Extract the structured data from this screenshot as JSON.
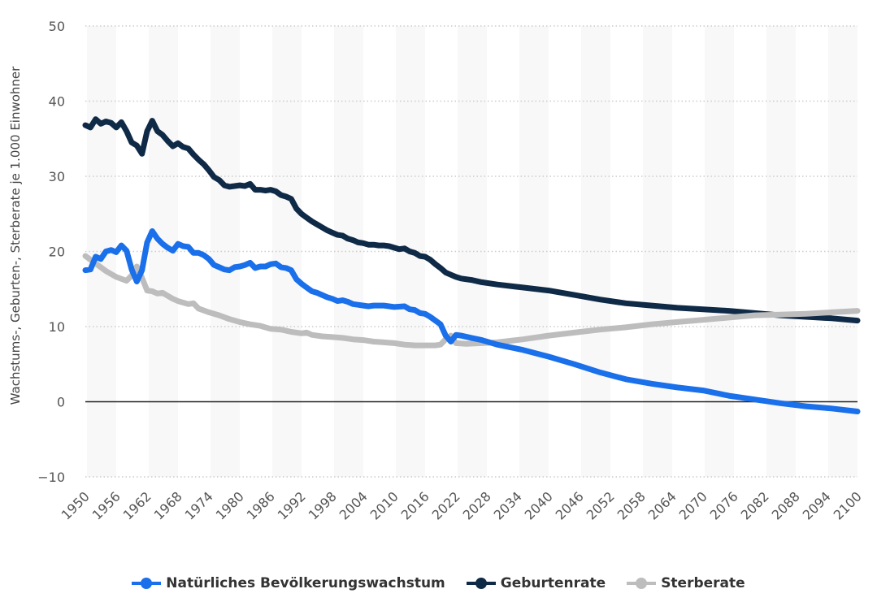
{
  "chart_data": {
    "type": "line",
    "ylabel": "Wachstums-, Geburten-, Sterberate je 1.000 Einwohner",
    "xlabel": "",
    "xlim": [
      1950,
      2100
    ],
    "ylim": [
      -10,
      50
    ],
    "yticks": [
      -10,
      0,
      10,
      20,
      30,
      40,
      50
    ],
    "ytick_labels": [
      "−10",
      "0",
      "10",
      "20",
      "30",
      "40",
      "50"
    ],
    "xticks": [
      "1950",
      "1956",
      "1962",
      "1968",
      "1974",
      "1980",
      "1986",
      "1992",
      "1998",
      "2004",
      "2010",
      "2016",
      "2022",
      "2028",
      "2034",
      "2040",
      "2046",
      "2052",
      "2058",
      "2064",
      "2070",
      "2076",
      "2082",
      "2088",
      "2094",
      "2100"
    ],
    "grid": true,
    "legend": "bottom",
    "series": [
      {
        "name": "Natürliches Bevölkerungswachstum",
        "color": "#1a6fea",
        "x": [
          1950,
          1951,
          1952,
          1953,
          1954,
          1955,
          1956,
          1957,
          1958,
          1959,
          1960,
          1961,
          1962,
          1963,
          1964,
          1965,
          1966,
          1967,
          1968,
          1969,
          1970,
          1971,
          1972,
          1973,
          1974,
          1975,
          1976,
          1977,
          1978,
          1979,
          1980,
          1981,
          1982,
          1983,
          1984,
          1985,
          1986,
          1987,
          1988,
          1989,
          1990,
          1991,
          1992,
          1993,
          1994,
          1995,
          1996,
          1997,
          1998,
          1999,
          2000,
          2001,
          2002,
          2003,
          2004,
          2005,
          2006,
          2008,
          2010,
          2012,
          2013,
          2014,
          2015,
          2016,
          2017,
          2018,
          2019,
          2020,
          2021,
          2022,
          2023,
          2025,
          2027,
          2030,
          2035,
          2040,
          2045,
          2050,
          2055,
          2060,
          2065,
          2070,
          2075,
          2080,
          2085,
          2090,
          2095,
          2100
        ],
        "y": [
          17.5,
          17.6,
          19.3,
          19,
          20,
          20.2,
          19.9,
          20.8,
          20.1,
          17.6,
          16.0,
          17.5,
          21.2,
          22.7,
          21.7,
          21.0,
          20.5,
          20.1,
          21.0,
          20.7,
          20.6,
          19.8,
          19.8,
          19.5,
          19.0,
          18.2,
          17.9,
          17.6,
          17.5,
          17.9,
          18.0,
          18.2,
          18.5,
          17.8,
          18.0,
          18.0,
          18.3,
          18.4,
          17.9,
          17.8,
          17.5,
          16.3,
          15.7,
          15.2,
          14.7,
          14.5,
          14.2,
          13.9,
          13.7,
          13.4,
          13.5,
          13.3,
          13.0,
          12.9,
          12.8,
          12.7,
          12.8,
          12.8,
          12.6,
          12.7,
          12.3,
          12.2,
          11.8,
          11.7,
          11.3,
          10.8,
          10.3,
          8.8,
          8.0,
          8.9,
          8.8,
          8.5,
          8.2,
          7.6,
          6.9,
          6.0,
          5.0,
          3.9,
          3.0,
          2.4,
          1.9,
          1.5,
          0.8,
          0.3,
          -0.2,
          -0.6,
          -0.9,
          -1.3
        ]
      },
      {
        "name": "Geburtenrate",
        "color": "#0f2a47",
        "x": [
          1950,
          1951,
          1952,
          1953,
          1954,
          1955,
          1956,
          1957,
          1958,
          1959,
          1960,
          1961,
          1962,
          1963,
          1964,
          1965,
          1966,
          1967,
          1968,
          1969,
          1970,
          1971,
          1972,
          1973,
          1974,
          1975,
          1976,
          1977,
          1978,
          1979,
          1980,
          1981,
          1982,
          1983,
          1984,
          1985,
          1986,
          1987,
          1988,
          1989,
          1990,
          1991,
          1992,
          1993,
          1994,
          1995,
          1996,
          1997,
          1998,
          1999,
          2000,
          2001,
          2002,
          2003,
          2004,
          2005,
          2006,
          2007,
          2008,
          2009,
          2010,
          2011,
          2012,
          2013,
          2014,
          2015,
          2016,
          2017,
          2018,
          2019,
          2020,
          2021,
          2022,
          2023,
          2025,
          2027,
          2030,
          2035,
          2040,
          2045,
          2050,
          2055,
          2060,
          2065,
          2070,
          2075,
          2080,
          2085,
          2090,
          2095,
          2100
        ],
        "y": [
          36.8,
          36.5,
          37.6,
          37.0,
          37.3,
          37.1,
          36.5,
          37.2,
          36,
          34.5,
          34.1,
          33.0,
          36,
          37.4,
          36,
          35.5,
          34.7,
          34,
          34.4,
          33.9,
          33.7,
          32.9,
          32.2,
          31.6,
          30.8,
          29.9,
          29.5,
          28.8,
          28.6,
          28.7,
          28.8,
          28.7,
          29.0,
          28.2,
          28.2,
          28.1,
          28.2,
          28.0,
          27.5,
          27.3,
          27.0,
          25.7,
          25.0,
          24.5,
          24.0,
          23.6,
          23.2,
          22.8,
          22.5,
          22.2,
          22.1,
          21.7,
          21.5,
          21.2,
          21.1,
          20.9,
          20.9,
          20.8,
          20.8,
          20.7,
          20.5,
          20.3,
          20.4,
          20.0,
          19.8,
          19.4,
          19.3,
          18.9,
          18.3,
          17.8,
          17.2,
          16.9,
          16.6,
          16.4,
          16.2,
          15.9,
          15.6,
          15.2,
          14.8,
          14.2,
          13.6,
          13.1,
          12.8,
          12.5,
          12.3,
          12.1,
          11.8,
          11.5,
          11.3,
          11.1,
          10.8
        ]
      },
      {
        "name": "Sterberate",
        "color": "#bdbdbd",
        "x": [
          1950,
          1952,
          1954,
          1956,
          1958,
          1959,
          1960,
          1961,
          1962,
          1963,
          1964,
          1965,
          1966,
          1967,
          1968,
          1970,
          1971,
          1972,
          1974,
          1976,
          1978,
          1980,
          1982,
          1984,
          1986,
          1988,
          1990,
          1992,
          1993,
          1994,
          1996,
          1998,
          2000,
          2002,
          2004,
          2006,
          2008,
          2010,
          2012,
          2014,
          2018,
          2019,
          2020,
          2021,
          2022,
          2024,
          2027,
          2030,
          2035,
          2040,
          2045,
          2050,
          2055,
          2060,
          2065,
          2070,
          2075,
          2080,
          2085,
          2090,
          2095,
          2100
        ],
        "y": [
          19.4,
          18.4,
          17.4,
          16.6,
          16.1,
          16.8,
          18.0,
          16.5,
          14.8,
          14.7,
          14.4,
          14.5,
          14.1,
          13.7,
          13.4,
          13.0,
          13.1,
          12.4,
          11.9,
          11.5,
          11.0,
          10.6,
          10.3,
          10.1,
          9.7,
          9.6,
          9.3,
          9.1,
          9.2,
          8.9,
          8.7,
          8.6,
          8.5,
          8.3,
          8.2,
          8.0,
          7.9,
          7.8,
          7.6,
          7.5,
          7.5,
          7.6,
          8.3,
          8.8,
          7.8,
          7.7,
          7.8,
          7.9,
          8.3,
          8.8,
          9.2,
          9.6,
          9.9,
          10.3,
          10.6,
          10.9,
          11.2,
          11.5,
          11.6,
          11.7,
          11.9,
          12.1
        ]
      }
    ]
  }
}
